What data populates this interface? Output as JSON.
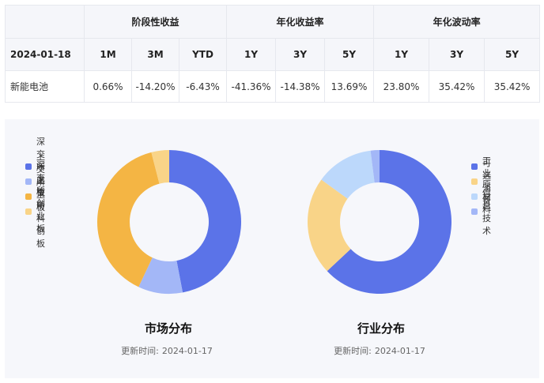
{
  "table": {
    "groups": [
      "阶段性收益",
      "年化收益率",
      "年化波动率"
    ],
    "date": "2024-01-18",
    "columns": [
      "1M",
      "3M",
      "YTD",
      "1Y",
      "3Y",
      "5Y",
      "1Y",
      "3Y",
      "5Y"
    ],
    "row": {
      "name": "新能电池",
      "values": [
        "0.66%",
        "-14.20%",
        "-6.43%",
        "-41.36%",
        "-14.38%",
        "13.69%",
        "23.80%",
        "35.42%",
        "35.42%"
      ]
    }
  },
  "chart_data": [
    {
      "type": "pie",
      "title": "市场分布",
      "update_label": "更新时间:",
      "update_date": "2024-01-17",
      "legend_position": "left",
      "categories": [
        "深交所主板",
        "上交所主板",
        "深交所创业板",
        "上交所科创板"
      ],
      "values": [
        47,
        10,
        39,
        4
      ],
      "colors": [
        "#5b73e8",
        "#a3b7f7",
        "#f4b544",
        "#f9d488"
      ]
    },
    {
      "type": "pie",
      "title": "行业分布",
      "update_label": "更新时间:",
      "update_date": "2024-01-17",
      "legend_position": "right",
      "categories": [
        "工业",
        "可选消费",
        "原材料",
        "信息技术"
      ],
      "values": [
        63,
        22,
        13,
        2
      ],
      "colors": [
        "#5b73e8",
        "#f9d488",
        "#bcd8fb",
        "#a3b7f7"
      ]
    }
  ]
}
